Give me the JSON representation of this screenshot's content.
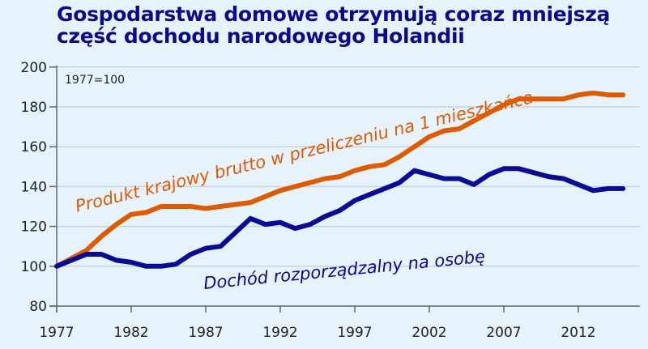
{
  "title": {
    "line1": "Gospodarstwa domowe otrzymują coraz mniejszą",
    "line2": "część dochodu narodowego Holandii"
  },
  "base_note": "1977=100",
  "colors": {
    "gdp": "#e05a00",
    "income": "#0a0a96",
    "title": "#0a0a8c",
    "background": "#e6f3fc",
    "grid": "#c8d4dc"
  },
  "chart_data": {
    "type": "line",
    "title": "Gospodarstwa domowe otrzymują coraz mniejszą część dochodu narodowego Holandii",
    "xlabel": "",
    "ylabel": "",
    "note": "1977=100",
    "ylim": [
      80,
      200
    ],
    "yticks": [
      80,
      100,
      120,
      140,
      160,
      180,
      200
    ],
    "xticks": [
      1977,
      1982,
      1987,
      1992,
      1997,
      2002,
      2007,
      2012
    ],
    "grid": true,
    "legend_position": "inline labels",
    "x": [
      1977,
      1978,
      1979,
      1980,
      1981,
      1982,
      1983,
      1984,
      1985,
      1986,
      1987,
      1988,
      1989,
      1990,
      1991,
      1992,
      1993,
      1994,
      1995,
      1996,
      1997,
      1998,
      1999,
      2000,
      2001,
      2002,
      2003,
      2004,
      2005,
      2006,
      2007,
      2008,
      2009,
      2010,
      2011,
      2012,
      2013,
      2014,
      2015
    ],
    "series": [
      {
        "name": "Produkt krajowy brutto w przeliczeniu na 1 mieszkańca",
        "values": [
          100,
          104,
          108,
          115,
          121,
          126,
          127,
          130,
          130,
          130,
          129,
          130,
          131,
          132,
          135,
          138,
          140,
          142,
          144,
          145,
          148,
          150,
          151,
          155,
          160,
          165,
          168,
          169,
          173,
          177,
          181,
          184,
          184,
          184,
          184,
          186,
          187,
          186,
          186
        ]
      },
      {
        "name": "Dochód rozporządzalny na osobę",
        "values": [
          100,
          103,
          106,
          106,
          103,
          102,
          100,
          100,
          101,
          106,
          109,
          110,
          117,
          124,
          121,
          122,
          119,
          121,
          125,
          128,
          133,
          136,
          139,
          142,
          148,
          146,
          144,
          144,
          141,
          146,
          149,
          149,
          147,
          145,
          144,
          141,
          138,
          139,
          139
        ]
      }
    ]
  },
  "labels": {
    "gdp": "Produkt krajowy brutto w przeliczeniu na 1 mieszkańca",
    "income": "Dochód rozporządzalny na osobę"
  }
}
